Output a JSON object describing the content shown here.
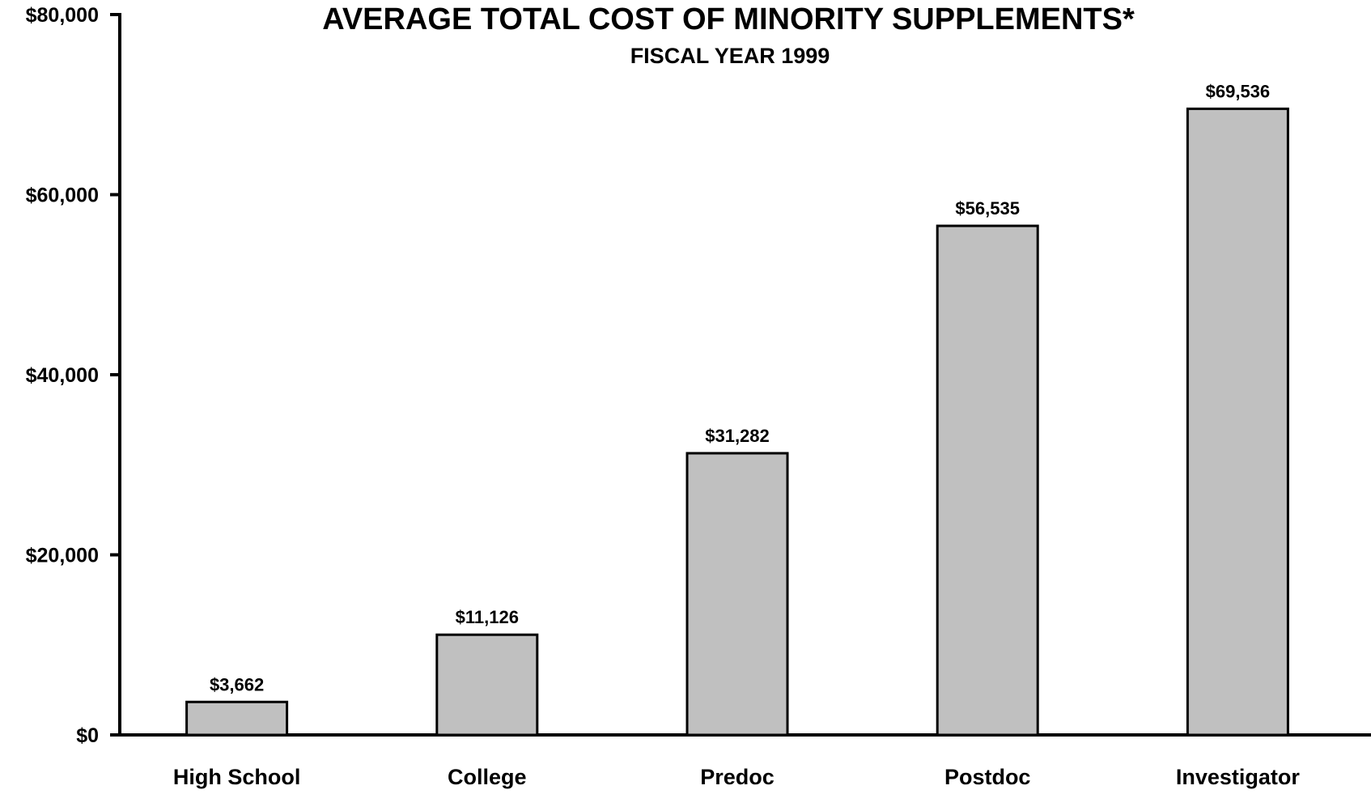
{
  "chart_data": {
    "type": "bar",
    "title": "AVERAGE TOTAL COST OF MINORITY SUPPLEMENTS*",
    "subtitle": "FISCAL YEAR 1999",
    "xlabel": "",
    "ylabel": "",
    "categories": [
      "High School",
      "College",
      "Predoc",
      "Postdoc",
      "Investigator"
    ],
    "values": [
      3662,
      11126,
      31282,
      56535,
      69536
    ],
    "value_labels": [
      "$3,662",
      "$11,126",
      "$31,282",
      "$56,535",
      "$69,536"
    ],
    "ylim": [
      0,
      80000
    ],
    "yticks": [
      0,
      20000,
      40000,
      60000,
      80000
    ],
    "ytick_labels": [
      "$0",
      "$20,000",
      "$40,000",
      "$60,000",
      "$80,000"
    ],
    "grid": false,
    "legend": "none",
    "bar_color": "#c0c0c0",
    "bar_edge_color": "#000000"
  }
}
